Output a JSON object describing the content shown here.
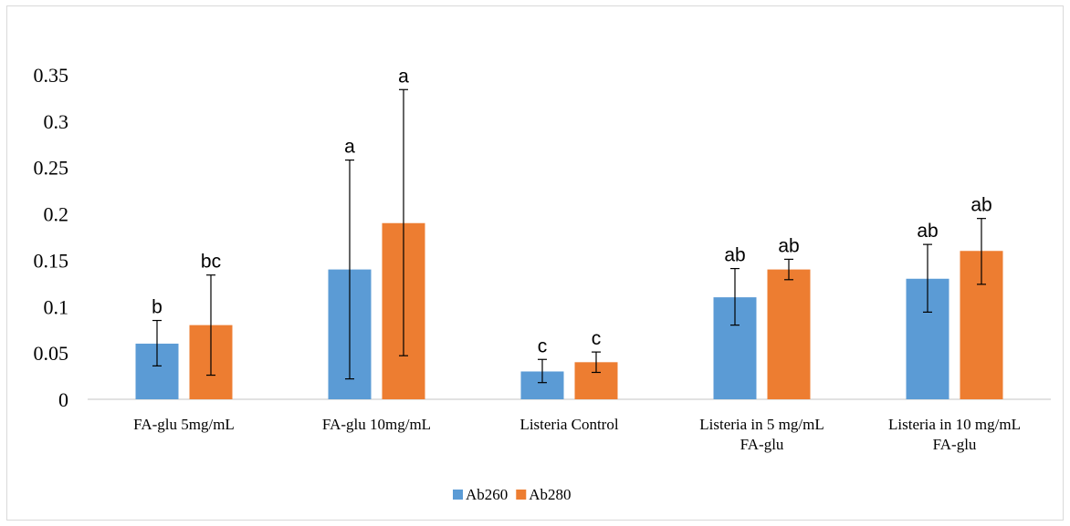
{
  "chart_data": {
    "type": "bar",
    "title": "",
    "xlabel": "",
    "ylabel": "",
    "ylim": [
      0,
      0.35
    ],
    "yticks": [
      "0",
      "0.05",
      "0.1",
      "0.15",
      "0.2",
      "0.25",
      "0.3",
      "0.35"
    ],
    "grid": false,
    "legend_position": "bottom",
    "categories": [
      [
        "FA-glu 5mg/mL"
      ],
      [
        "FA-glu 10mg/mL"
      ],
      [
        "Listeria Control"
      ],
      [
        "Listeria in 5 mg/mL",
        "FA-glu"
      ],
      [
        "Listeria in 10 mg/mL",
        "FA-glu"
      ]
    ],
    "series": [
      {
        "name": "Ab260",
        "color": "#5b9bd5",
        "values": [
          0.06,
          0.14,
          0.03,
          0.11,
          0.13
        ],
        "error_low": [
          0.036,
          0.022,
          0.018,
          0.08,
          0.094
        ],
        "error_high": [
          0.085,
          0.258,
          0.043,
          0.141,
          0.167
        ],
        "labels": [
          "b",
          "a",
          "c",
          "ab",
          "ab"
        ]
      },
      {
        "name": "Ab280",
        "color": "#ed7d31",
        "values": [
          0.08,
          0.19,
          0.04,
          0.14,
          0.16
        ],
        "error_low": [
          0.026,
          0.047,
          0.029,
          0.129,
          0.124
        ],
        "error_high": [
          0.134,
          0.334,
          0.051,
          0.151,
          0.195
        ],
        "labels": [
          "bc",
          "a",
          "c",
          "ab",
          "ab"
        ]
      }
    ]
  }
}
